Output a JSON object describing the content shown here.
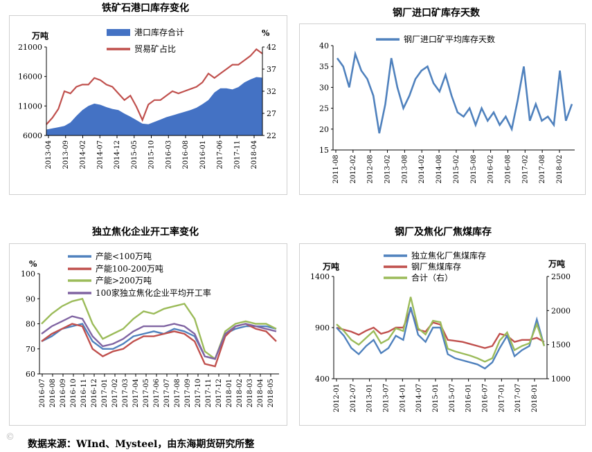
{
  "source_text": "数据来源：WInd、Mysteel，由东海期货研究所整",
  "watermark": "©",
  "chart_data": [
    {
      "id": "c1",
      "type": "area+line",
      "title": "铁矿石港口库存变化",
      "left_unit": "万吨",
      "right_unit": "%",
      "left_ticks": [
        6000,
        11000,
        16000,
        21000
      ],
      "right_ticks": [
        22,
        27,
        32,
        37,
        42
      ],
      "ylim_left": [
        6000,
        21000
      ],
      "ylim_right": [
        22,
        42
      ],
      "x_ticks": [
        "2013-04",
        "2013-09",
        "2014-02",
        "2014-07",
        "2014-12",
        "2015-05",
        "2015-10",
        "2016-03",
        "2016-08",
        "2016-01",
        "2017-06",
        "2017-11",
        "2018-04"
      ],
      "legend_position": "top-left",
      "series": [
        {
          "name": "港口库存合计",
          "kind": "area",
          "axis": "left",
          "color": "#4472c4",
          "values": [
            7000,
            7200,
            7400,
            7600,
            8200,
            9300,
            10300,
            11000,
            11400,
            11200,
            10800,
            10500,
            10300,
            9700,
            9200,
            8600,
            8000,
            7900,
            8300,
            8700,
            9100,
            9400,
            9700,
            10000,
            10300,
            10700,
            11300,
            12000,
            13300,
            14000,
            14000,
            13800,
            14200,
            15000,
            15500,
            15900,
            15800
          ]
        },
        {
          "name": "贸易矿占比",
          "kind": "line",
          "axis": "right",
          "color": "#c0504d",
          "values": [
            24.5,
            26,
            28,
            32,
            31.5,
            33,
            33.5,
            33.5,
            35,
            34.5,
            33.5,
            33,
            31.5,
            30,
            31,
            28.5,
            25.5,
            29,
            30,
            30,
            31,
            32,
            31.5,
            32,
            32.5,
            33,
            34,
            36,
            35,
            36,
            37,
            38,
            38,
            39,
            40,
            41.5,
            40.5
          ]
        }
      ]
    },
    {
      "id": "c2",
      "type": "line",
      "title": "钢厂进口矿库存天数",
      "y_ticks": [
        15,
        20,
        25,
        30,
        35,
        40
      ],
      "ylim": [
        15,
        40
      ],
      "x_ticks": [
        "2011-08",
        "2012-02",
        "2012-08",
        "2013-02",
        "2013-08",
        "2014-02",
        "2014-08",
        "2015-02",
        "2015-08",
        "2016-02",
        "2016-08",
        "2017-02",
        "2017-08",
        "2018-02"
      ],
      "legend_position": "top-right",
      "series": [
        {
          "name": "钢厂进口矿平均库存天数",
          "color": "#4f81bd",
          "values": [
            37,
            35,
            30,
            38,
            34,
            32,
            28,
            19,
            26,
            37,
            30,
            25,
            28,
            32,
            34,
            35,
            31,
            29,
            33,
            28,
            24,
            23,
            25,
            21,
            25,
            22,
            24,
            21,
            23,
            20,
            27,
            35,
            22,
            26,
            22,
            23,
            21,
            34,
            22,
            26
          ]
        }
      ]
    },
    {
      "id": "c3",
      "type": "line",
      "title": "独立焦化企业开工率变化",
      "y_unit": "%",
      "y_ticks": [
        60,
        70,
        80,
        90,
        100
      ],
      "ylim": [
        60,
        100
      ],
      "x_ticks": [
        "2016-07",
        "2016-08",
        "2016-09",
        "2016-10",
        "2016-11",
        "2016-12",
        "2017-01",
        "2017-02",
        "2017-03",
        "2017-04",
        "2017-05",
        "2017-06",
        "2017-07",
        "2017-08",
        "2017-09",
        "2017-10",
        "2017-11",
        "2017-12",
        "2018-01",
        "2018-02",
        "2018-03",
        "2018-04",
        "2018-05"
      ],
      "legend_position": "top-left",
      "series": [
        {
          "name": "产能<100万吨",
          "color": "#4f81bd",
          "values": [
            73,
            75,
            78,
            79,
            80,
            73,
            70,
            70,
            72,
            75,
            76,
            77,
            76,
            78,
            77,
            75,
            67,
            66,
            76,
            78,
            79,
            79,
            79,
            78
          ]
        },
        {
          "name": "产能100-200万吨",
          "color": "#c0504d",
          "values": [
            73,
            76,
            78,
            80,
            79,
            70,
            67,
            69,
            70,
            73,
            75,
            75,
            76,
            77,
            76,
            73,
            64,
            63,
            75,
            79,
            80,
            78,
            77,
            73
          ]
        },
        {
          "name": "产能>200万吨",
          "color": "#9bbb59",
          "values": [
            80,
            84,
            87,
            89,
            90,
            80,
            74,
            76,
            78,
            82,
            85,
            84,
            86,
            87,
            88,
            82,
            69,
            66,
            77,
            80,
            81,
            80,
            80,
            78
          ]
        },
        {
          "name": "100家独立焦化企业平均开工率",
          "color": "#8064a2",
          "values": [
            76,
            79,
            81,
            83,
            82,
            75,
            71,
            72,
            74,
            77,
            79,
            79,
            79,
            80,
            79,
            76,
            67,
            66,
            76,
            79,
            80,
            79,
            78,
            77
          ]
        }
      ]
    },
    {
      "id": "c4",
      "type": "line",
      "title": "钢厂及焦化厂焦煤库存",
      "left_unit": "万吨",
      "right_unit": "万吨",
      "left_ticks": [
        400,
        900,
        1400
      ],
      "right_ticks": [
        1000,
        1500,
        2000,
        2500
      ],
      "ylim_left": [
        400,
        1400
      ],
      "ylim_right": [
        1000,
        2500
      ],
      "x_ticks": [
        "2012-01",
        "2012-07",
        "2013-01",
        "2013-07",
        "2014-01",
        "2014-07",
        "2015-01",
        "2015-07",
        "2016-01",
        "2016-07",
        "2017-01",
        "2017-07",
        "2018-01"
      ],
      "legend_position": "top-center",
      "series": [
        {
          "name": "独立焦化厂焦煤库存",
          "axis": "left",
          "color": "#4f81bd",
          "values": [
            900,
            820,
            700,
            640,
            720,
            780,
            650,
            700,
            820,
            780,
            1100,
            830,
            760,
            900,
            900,
            640,
            600,
            580,
            560,
            540,
            500,
            560,
            700,
            820,
            620,
            680,
            720,
            980,
            720
          ]
        },
        {
          "name": "钢厂焦煤库存",
          "axis": "left",
          "color": "#c0504d",
          "values": [
            900,
            880,
            860,
            830,
            870,
            900,
            840,
            860,
            900,
            900,
            1080,
            880,
            860,
            950,
            930,
            780,
            770,
            760,
            740,
            720,
            700,
            720,
            840,
            820,
            760,
            780,
            780,
            800,
            760
          ]
        },
        {
          "name": "合计（右）",
          "axis": "right",
          "color": "#9bbb59",
          "values": [
            1800,
            1700,
            1570,
            1500,
            1600,
            1700,
            1520,
            1580,
            1740,
            1700,
            2200,
            1740,
            1650,
            1850,
            1830,
            1440,
            1400,
            1370,
            1340,
            1300,
            1250,
            1300,
            1560,
            1680,
            1420,
            1480,
            1520,
            1800,
            1480
          ]
        }
      ]
    }
  ]
}
